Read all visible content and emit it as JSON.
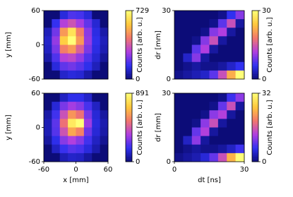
{
  "chart_data": [
    {
      "type": "heatmap",
      "ylabel": "y [mm]",
      "xlim": [
        -60,
        60
      ],
      "ylim": [
        -60,
        60
      ],
      "yticks": [
        -60,
        0,
        60
      ],
      "colormap": [
        "#0c0c78",
        "#3030f0",
        "#b03ee0",
        "#f2766c",
        "#ffc83c",
        "#ffff78"
      ],
      "colorbar": {
        "label": "Counts [arb. u.]",
        "lim": [
          0,
          729
        ],
        "ticks": [
          0,
          729
        ]
      },
      "values": [
        [
          0,
          0,
          120,
          180,
          170,
          120,
          0,
          0
        ],
        [
          0,
          150,
          300,
          350,
          280,
          200,
          110,
          0
        ],
        [
          80,
          220,
          500,
          650,
          450,
          250,
          130,
          60
        ],
        [
          100,
          260,
          600,
          729,
          500,
          260,
          140,
          80
        ],
        [
          90,
          230,
          450,
          500,
          380,
          230,
          130,
          70
        ],
        [
          60,
          180,
          300,
          320,
          260,
          180,
          110,
          40
        ],
        [
          0,
          120,
          200,
          220,
          190,
          140,
          80,
          0
        ],
        [
          0,
          0,
          100,
          120,
          110,
          60,
          0,
          0
        ]
      ]
    },
    {
      "type": "heatmap",
      "ylabel": "dr [mm]",
      "xlim": [
        0,
        30
      ],
      "ylim": [
        0,
        30
      ],
      "yticks": [
        0,
        30
      ],
      "colormap": [
        "#0c0c78",
        "#3030f0",
        "#b03ee0",
        "#f2766c",
        "#ffc83c",
        "#ffff78"
      ],
      "colorbar": {
        "label": "Counts [arb. u.]",
        "lim": [
          0,
          30
        ],
        "ticks": [
          0,
          30
        ]
      },
      "values": [
        [
          0,
          0,
          0,
          0,
          0,
          1,
          6,
          10
        ],
        [
          0,
          0,
          0,
          0,
          1,
          8,
          14,
          2
        ],
        [
          0,
          0,
          0,
          1,
          10,
          12,
          2,
          0
        ],
        [
          0,
          0,
          1,
          10,
          14,
          2,
          0,
          0
        ],
        [
          0,
          0,
          8,
          12,
          2,
          0,
          0,
          0
        ],
        [
          0,
          4,
          10,
          2,
          0,
          0,
          0,
          0
        ],
        [
          0,
          1,
          2,
          1,
          1,
          2,
          4,
          6
        ],
        [
          1,
          2,
          3,
          4,
          8,
          14,
          22,
          30
        ]
      ]
    },
    {
      "type": "heatmap",
      "xlabel": "x [mm]",
      "ylabel": "y [mm]",
      "xlim": [
        -60,
        60
      ],
      "ylim": [
        -60,
        60
      ],
      "xticks": [
        -60,
        0,
        60
      ],
      "yticks": [
        -60,
        0,
        60
      ],
      "colormap": [
        "#0c0c78",
        "#3030f0",
        "#b03ee0",
        "#f2766c",
        "#ffc83c",
        "#ffff78"
      ],
      "colorbar": {
        "label": "Counts [arb. u.]",
        "lim": [
          0,
          891
        ],
        "ticks": [
          0,
          891
        ]
      },
      "values": [
        [
          0,
          0,
          110,
          170,
          170,
          120,
          0,
          0
        ],
        [
          0,
          140,
          280,
          340,
          300,
          210,
          110,
          0
        ],
        [
          70,
          200,
          420,
          600,
          520,
          280,
          140,
          60
        ],
        [
          90,
          240,
          520,
          820,
          891,
          330,
          150,
          80
        ],
        [
          90,
          230,
          430,
          640,
          560,
          260,
          140,
          70
        ],
        [
          60,
          170,
          300,
          360,
          300,
          200,
          110,
          40
        ],
        [
          0,
          110,
          190,
          230,
          210,
          150,
          80,
          0
        ],
        [
          0,
          0,
          90,
          120,
          110,
          60,
          0,
          0
        ]
      ]
    },
    {
      "type": "heatmap",
      "xlabel": "dt [ns]",
      "ylabel": "dr [mm]",
      "xlim": [
        0,
        30
      ],
      "ylim": [
        0,
        30
      ],
      "xticks": [
        0,
        30
      ],
      "yticks": [
        0,
        30
      ],
      "colormap": [
        "#0c0c78",
        "#3030f0",
        "#b03ee0",
        "#f2766c",
        "#ffc83c",
        "#ffff78"
      ],
      "colorbar": {
        "label": "Counts [arb. u.]",
        "lim": [
          0,
          32
        ],
        "ticks": [
          0,
          32
        ]
      },
      "values": [
        [
          0,
          0,
          0,
          0,
          0,
          1,
          7,
          11
        ],
        [
          0,
          0,
          0,
          0,
          1,
          9,
          15,
          2
        ],
        [
          0,
          0,
          0,
          1,
          11,
          13,
          2,
          0
        ],
        [
          0,
          0,
          1,
          11,
          15,
          2,
          0,
          0
        ],
        [
          0,
          0,
          9,
          13,
          2,
          0,
          0,
          0
        ],
        [
          0,
          4,
          11,
          2,
          0,
          0,
          0,
          0
        ],
        [
          0,
          1,
          2,
          1,
          1,
          2,
          4,
          7
        ],
        [
          1,
          2,
          3,
          5,
          9,
          15,
          24,
          32
        ]
      ]
    }
  ]
}
